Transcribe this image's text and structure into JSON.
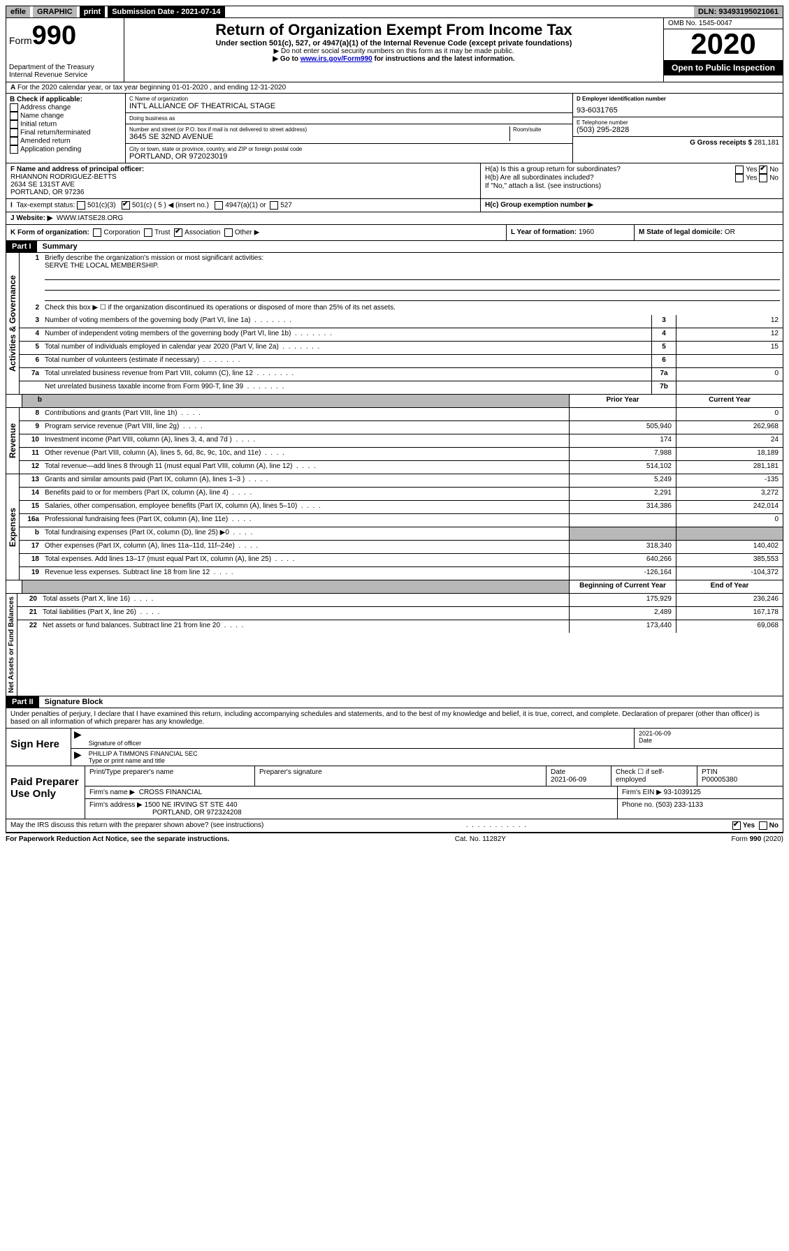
{
  "top": {
    "efile": "efile",
    "graphic": "GRAPHIC",
    "print": "print",
    "sub_label": "Submission Date - 2021-07-14",
    "dln": "DLN: 93493195021061"
  },
  "header": {
    "form_word": "Form",
    "form_no": "990",
    "dept": "Department of the Treasury",
    "irs": "Internal Revenue Service",
    "title": "Return of Organization Exempt From Income Tax",
    "subtitle": "Under section 501(c), 527, or 4947(a)(1) of the Internal Revenue Code (except private foundations)",
    "note1": "▶ Do not enter social security numbers on this form as it may be made public.",
    "note2_pre": "▶ Go to ",
    "note2_link": "www.irs.gov/Form990",
    "note2_post": " for instructions and the latest information.",
    "omb": "OMB No. 1545-0047",
    "year": "2020",
    "open": "Open to Public Inspection"
  },
  "row_a": {
    "text": "For the 2020 calendar year, or tax year beginning 01-01-2020   , and ending 12-31-2020"
  },
  "b": {
    "hdr": "B Check if applicable:",
    "addr": "Address change",
    "name": "Name change",
    "init": "Initial return",
    "final": "Final return/terminated",
    "amend": "Amended return",
    "app": "Application pending"
  },
  "c": {
    "lbl_name": "C Name of organization",
    "name": "INT'L ALLIANCE OF THEATRICAL STAGE",
    "lbl_dba": "Doing business as",
    "dba": "",
    "lbl_street": "Number and street (or P.O. box if mail is not delivered to street address)",
    "lbl_room": "Room/suite",
    "street": "3645 SE 32ND AVENUE",
    "lbl_city": "City or town, state or province, country, and ZIP or foreign postal code",
    "city": "PORTLAND, OR  972023019"
  },
  "d": {
    "lbl": "D Employer identification number",
    "val": "93-6031765"
  },
  "e": {
    "lbl": "E Telephone number",
    "val": "(503) 295-2828"
  },
  "g": {
    "lbl": "G Gross receipts $",
    "val": "281,181"
  },
  "f": {
    "lbl": "F Name and address of principal officer:",
    "name": "RHIANNON RODRIGUEZ-BETTS",
    "addr1": "2634 SE 131ST AVE",
    "addr2": "PORTLAND, OR  97236"
  },
  "h": {
    "a": "H(a)  Is this a group return for subordinates?",
    "b": "H(b)  Are all subordinates included?",
    "b_note": "If \"No,\" attach a list. (see instructions)",
    "c": "H(c)  Group exemption number ▶",
    "yes": "Yes",
    "no": "No"
  },
  "i": {
    "lbl": "Tax-exempt status:",
    "o1": "501(c)(3)",
    "o2": "501(c) ( 5 ) ◀ (insert no.)",
    "o3": "4947(a)(1) or",
    "o4": "527"
  },
  "j": {
    "lbl": "J    Website: ▶",
    "val": "WWW.IATSE28.ORG"
  },
  "k": {
    "lbl": "K Form of organization:",
    "o1": "Corporation",
    "o2": "Trust",
    "o3": "Association",
    "o4": "Other ▶"
  },
  "l": {
    "lbl": "L Year of formation:",
    "val": "1960"
  },
  "m": {
    "lbl": "M State of legal domicile:",
    "val": "OR"
  },
  "part1": {
    "hdr": "Part I",
    "title": "Summary",
    "q1": "Briefly describe the organization's mission or most significant activities:",
    "mission": "SERVE THE LOCAL MEMBERSHIP.",
    "q2": "Check this box ▶ ☐  if the organization discontinued its operations or disposed of more than 25% of its net assets.",
    "labels": {
      "act": "Activities & Governance",
      "rev": "Revenue",
      "exp": "Expenses",
      "net": "Net Assets or Fund Balances"
    },
    "rows_top": [
      {
        "n": "3",
        "t": "Number of voting members of the governing body (Part VI, line 1a)",
        "k": "3",
        "v": "12"
      },
      {
        "n": "4",
        "t": "Number of independent voting members of the governing body (Part VI, line 1b)",
        "k": "4",
        "v": "12"
      },
      {
        "n": "5",
        "t": "Total number of individuals employed in calendar year 2020 (Part V, line 2a)",
        "k": "5",
        "v": "15"
      },
      {
        "n": "6",
        "t": "Total number of volunteers (estimate if necessary)",
        "k": "6",
        "v": ""
      },
      {
        "n": "7a",
        "t": "Total unrelated business revenue from Part VIII, column (C), line 12",
        "k": "7a",
        "v": "0"
      },
      {
        "n": "",
        "t": "Net unrelated business taxable income from Form 990-T, line 39",
        "k": "7b",
        "v": ""
      }
    ],
    "col_hdr": {
      "prior": "Prior Year",
      "curr": "Current Year",
      "beg": "Beginning of Current Year",
      "end": "End of Year"
    },
    "rev": [
      {
        "n": "8",
        "t": "Contributions and grants (Part VIII, line 1h)",
        "p": "",
        "c": "0"
      },
      {
        "n": "9",
        "t": "Program service revenue (Part VIII, line 2g)",
        "p": "505,940",
        "c": "262,968"
      },
      {
        "n": "10",
        "t": "Investment income (Part VIII, column (A), lines 3, 4, and 7d )",
        "p": "174",
        "c": "24"
      },
      {
        "n": "11",
        "t": "Other revenue (Part VIII, column (A), lines 5, 6d, 8c, 9c, 10c, and 11e)",
        "p": "7,988",
        "c": "18,189"
      },
      {
        "n": "12",
        "t": "Total revenue—add lines 8 through 11 (must equal Part VIII, column (A), line 12)",
        "p": "514,102",
        "c": "281,181"
      }
    ],
    "exp": [
      {
        "n": "13",
        "t": "Grants and similar amounts paid (Part IX, column (A), lines 1–3 )",
        "p": "5,249",
        "c": "-135"
      },
      {
        "n": "14",
        "t": "Benefits paid to or for members (Part IX, column (A), line 4)",
        "p": "2,291",
        "c": "3,272"
      },
      {
        "n": "15",
        "t": "Salaries, other compensation, employee benefits (Part IX, column (A), lines 5–10)",
        "p": "314,386",
        "c": "242,014"
      },
      {
        "n": "16a",
        "t": "Professional fundraising fees (Part IX, column (A), line 11e)",
        "p": "",
        "c": "0"
      },
      {
        "n": "b",
        "t": "Total fundraising expenses (Part IX, column (D), line 25) ▶0",
        "p": "shade",
        "c": "shade"
      },
      {
        "n": "17",
        "t": "Other expenses (Part IX, column (A), lines 11a–11d, 11f–24e)",
        "p": "318,340",
        "c": "140,402"
      },
      {
        "n": "18",
        "t": "Total expenses. Add lines 13–17 (must equal Part IX, column (A), line 25)",
        "p": "640,266",
        "c": "385,553"
      },
      {
        "n": "19",
        "t": "Revenue less expenses. Subtract line 18 from line 12",
        "p": "-126,164",
        "c": "-104,372"
      }
    ],
    "net": [
      {
        "n": "20",
        "t": "Total assets (Part X, line 16)",
        "p": "175,929",
        "c": "236,246"
      },
      {
        "n": "21",
        "t": "Total liabilities (Part X, line 26)",
        "p": "2,489",
        "c": "167,178"
      },
      {
        "n": "22",
        "t": "Net assets or fund balances. Subtract line 21 from line 20",
        "p": "173,440",
        "c": "69,068"
      }
    ]
  },
  "part2": {
    "hdr": "Part II",
    "title": "Signature Block",
    "decl": "Under penalties of perjury, I declare that I have examined this return, including accompanying schedules and statements, and to the best of my knowledge and belief, it is true, correct, and complete. Declaration of preparer (other than officer) is based on all information of which preparer has any knowledge."
  },
  "sign": {
    "here": "Sign Here",
    "sig_lbl": "Signature of officer",
    "date_lbl": "Date",
    "date": "2021-06-09",
    "name": "PHILLIP A TIMMONS  FINANCIAL SEC",
    "name_lbl": "Type or print name and title"
  },
  "prep": {
    "hdr": "Paid Preparer Use Only",
    "c1": "Print/Type preparer's name",
    "c2": "Preparer's signature",
    "c3": "Date",
    "c3v": "2021-06-09",
    "c4": "Check ☐ if self-employed",
    "c5": "PTIN",
    "c5v": "P00005380",
    "firm_lbl": "Firm's name    ▶",
    "firm": "CROSS FINANCIAL",
    "ein_lbl": "Firm's EIN ▶",
    "ein": "93-1039125",
    "addr_lbl": "Firm's address ▶",
    "addr": "1500 NE IRVING ST STE 440",
    "addr2": "PORTLAND, OR  972324208",
    "phone_lbl": "Phone no.",
    "phone": "(503) 233-1133"
  },
  "footer": {
    "discuss": "May the IRS discuss this return with the preparer shown above? (see instructions)",
    "yes": "Yes",
    "no": "No",
    "pra": "For Paperwork Reduction Act Notice, see the separate instructions.",
    "cat": "Cat. No. 11282Y",
    "form": "Form 990 (2020)"
  }
}
